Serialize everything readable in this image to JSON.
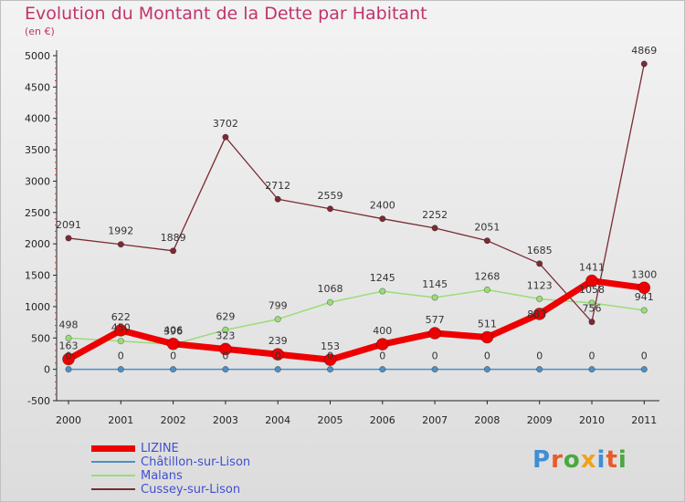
{
  "title": "Evolution du Montant de la Dette par Habitant",
  "unit_label": "(en €)",
  "logo": {
    "text": "Proxiti",
    "letter_colors": [
      "#3e8fd6",
      "#e85a2b",
      "#4aa83f",
      "#f0a21b",
      "#3e8fd6",
      "#e85a2b",
      "#4aa83f"
    ]
  },
  "chart_data": {
    "type": "line",
    "title": "Evolution du Montant de la Dette par Habitant",
    "ylabel": "(en €)",
    "xlabel": "",
    "x": [
      "2000",
      "2001",
      "2002",
      "2003",
      "2004",
      "2005",
      "2006",
      "2007",
      "2008",
      "2009",
      "2010",
      "2011"
    ],
    "ylim": [
      -500,
      5000
    ],
    "yticks": [
      "-500",
      "0",
      "500",
      "1000",
      "1500",
      "2000",
      "2500",
      "3000",
      "3500",
      "4000",
      "4500",
      "5000"
    ],
    "grid": false,
    "legend": "bottom-left",
    "series": [
      {
        "name": "LIZINE",
        "color": "#ee0000",
        "values": [
          163,
          622,
          406,
          323,
          239,
          153,
          400,
          577,
          511,
          883,
          1411,
          1300
        ],
        "labels": [
          "163",
          "622",
          "406",
          "323",
          "239",
          "153",
          "400",
          "577",
          "511",
          "",
          "1411",
          "1300"
        ]
      },
      {
        "name": "Châtillon-sur-Lison",
        "color": "#4f8fc4",
        "values": [
          0,
          0,
          0,
          0,
          0,
          0,
          0,
          0,
          0,
          0,
          0,
          0
        ],
        "labels": [
          "0",
          "0",
          "0",
          "0",
          "0",
          "0",
          "0",
          "0",
          "0",
          "0",
          "0",
          "0"
        ]
      },
      {
        "name": "Malans",
        "color": "#99dd77",
        "values": [
          498,
          450,
          396,
          629,
          799,
          1068,
          1245,
          1145,
          1268,
          1123,
          1058,
          941
        ],
        "labels": [
          "498",
          "450",
          "396",
          "629",
          "799",
          "1068",
          "1245",
          "1145",
          "1268",
          "1123",
          "1058",
          "941"
        ]
      },
      {
        "name": "Cussey-sur-Lison",
        "color": "#7a2b33",
        "values": [
          2091,
          1992,
          1889,
          3702,
          2712,
          2559,
          2400,
          2252,
          2051,
          1685,
          756,
          4869
        ],
        "labels": [
          "2091",
          "1992",
          "1889",
          "3702",
          "2712",
          "2559",
          "2400",
          "2252",
          "2051",
          "1685",
          "756",
          "4869"
        ]
      }
    ],
    "extra_labels": [
      "883"
    ]
  }
}
